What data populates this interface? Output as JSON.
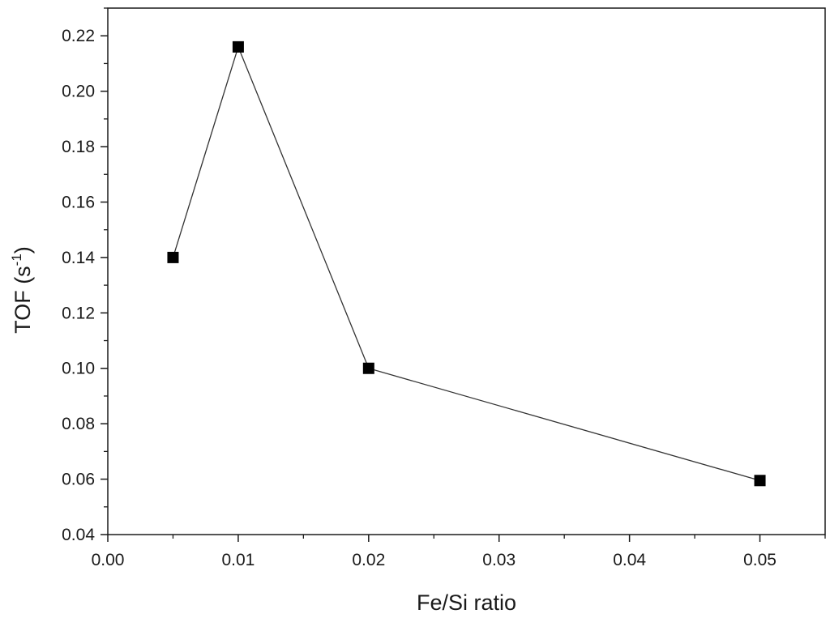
{
  "chart_data": {
    "type": "line",
    "title": "",
    "xlabel": "Fe/Si ratio",
    "ylabel": {
      "main": "TOF (s",
      "superscript": "-1",
      "close": ")"
    },
    "xlim": [
      0.0,
      0.055
    ],
    "ylim": [
      0.04,
      0.23
    ],
    "xticks": [
      0.0,
      0.01,
      0.02,
      0.03,
      0.04,
      0.05
    ],
    "xtick_labels": [
      "0.00",
      "0.01",
      "0.02",
      "0.03",
      "0.04",
      "0.05"
    ],
    "yticks": [
      0.04,
      0.06,
      0.08,
      0.1,
      0.12,
      0.14,
      0.16,
      0.18,
      0.2,
      0.22
    ],
    "ytick_labels": [
      "0.04",
      "0.06",
      "0.08",
      "0.10",
      "0.12",
      "0.14",
      "0.16",
      "0.18",
      "0.20",
      "0.22"
    ],
    "x_minor_step": 0.005,
    "y_minor_step": 0.01,
    "grid": false,
    "marker": "filled-square",
    "line_color": "#333333",
    "marker_color": "#000000",
    "series": [
      {
        "x": [
          0.005,
          0.01,
          0.02,
          0.05
        ],
        "y": [
          0.14,
          0.216,
          0.1,
          0.0595
        ]
      }
    ]
  }
}
